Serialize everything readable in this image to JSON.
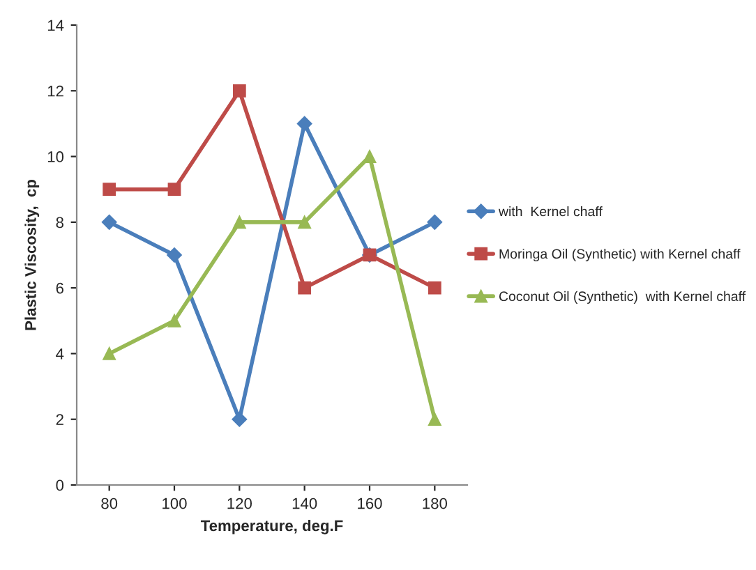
{
  "chart_data": {
    "type": "line",
    "xlabel": "Temperature, deg.F",
    "ylabel": "Plastic Viscosity,  cp",
    "categories": [
      "80",
      "100",
      "120",
      "140",
      "160",
      "180"
    ],
    "series": [
      {
        "name": "with  Kernel chaff",
        "color": "#4a7ebb",
        "marker": "diamond",
        "values": [
          8,
          7,
          2,
          11,
          7,
          8
        ]
      },
      {
        "name": "Moringa Oil (Synthetic) with Kernel chaff",
        "color": "#be4b48",
        "marker": "square",
        "values": [
          9,
          9,
          12,
          6,
          7,
          6
        ]
      },
      {
        "name": "Coconut Oil (Synthetic)  with Kernel chaff",
        "color": "#98b954",
        "marker": "triangle",
        "values": [
          4,
          5,
          8,
          8,
          10,
          2
        ]
      }
    ],
    "ylim": [
      0,
      14
    ],
    "yticks": [
      0,
      2,
      4,
      6,
      8,
      10,
      12,
      14
    ],
    "grid": false,
    "legend": "right"
  }
}
